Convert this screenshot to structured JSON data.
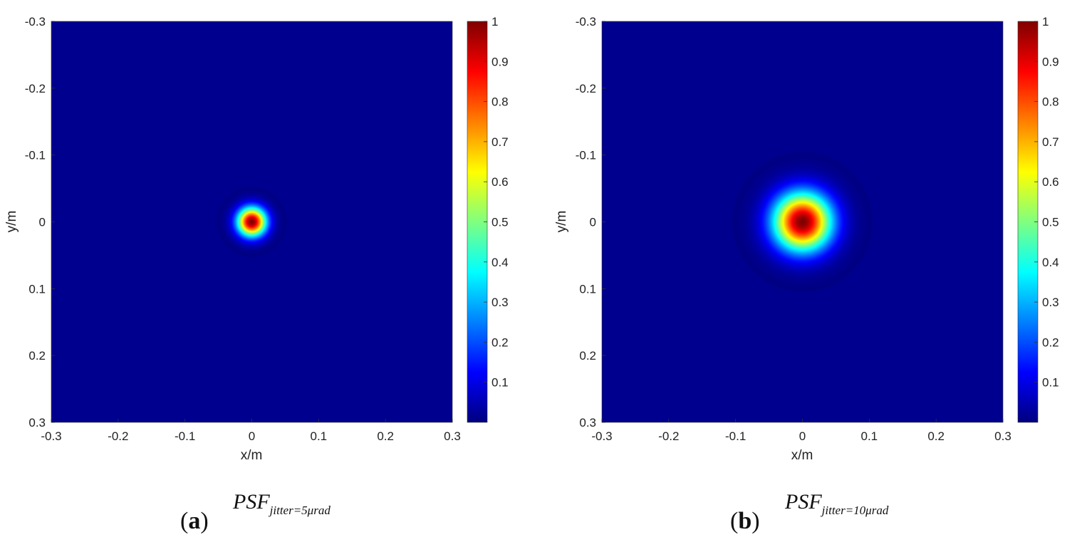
{
  "chart_data": [
    {
      "type": "heatmap",
      "panel_label": "a",
      "caption_main": "PSF",
      "caption_sub": "jitter=5μrad",
      "xlabel": "x/m",
      "ylabel": "y/m",
      "xlim": [
        -0.3,
        0.3
      ],
      "ylim": [
        -0.3,
        0.3
      ],
      "y_axis_reversed": true,
      "xticks": [
        -0.3,
        -0.2,
        -0.1,
        0,
        0.1,
        0.2,
        0.3
      ],
      "xtick_labels": [
        "-0.3",
        "-0.2",
        "-0.1",
        "0",
        "0.1",
        "0.2",
        "0.3"
      ],
      "yticks": [
        -0.3,
        -0.2,
        -0.1,
        0,
        0.1,
        0.2,
        0.3
      ],
      "ytick_labels": [
        "-0.3",
        "-0.2",
        "-0.1",
        "0",
        "0.1",
        "0.2",
        "0.3"
      ],
      "colormap": "jet",
      "clim": [
        0,
        1
      ],
      "colorbar_ticks": [
        0.1,
        0.2,
        0.3,
        0.4,
        0.5,
        0.6,
        0.7,
        0.8,
        0.9,
        1
      ],
      "colorbar_tick_labels": [
        "0.1",
        "0.2",
        "0.3",
        "0.4",
        "0.5",
        "0.6",
        "0.7",
        "0.8",
        "0.9",
        "1"
      ],
      "peak": {
        "x": 0,
        "y": 0,
        "value": 1
      },
      "gaussian_sigma": 0.015,
      "background_color": "#00008f"
    },
    {
      "type": "heatmap",
      "panel_label": "b",
      "caption_main": "PSF",
      "caption_sub": "jitter=10μrad",
      "xlabel": "x/m",
      "ylabel": "y/m",
      "xlim": [
        -0.3,
        0.3
      ],
      "ylim": [
        -0.3,
        0.3
      ],
      "y_axis_reversed": true,
      "xticks": [
        -0.3,
        -0.2,
        -0.1,
        0,
        0.1,
        0.2,
        0.3
      ],
      "xtick_labels": [
        "-0.3",
        "-0.2",
        "-0.1",
        "0",
        "0.1",
        "0.2",
        "0.3"
      ],
      "yticks": [
        -0.3,
        -0.2,
        -0.1,
        0,
        0.1,
        0.2,
        0.3
      ],
      "ytick_labels": [
        "-0.3",
        "-0.2",
        "-0.1",
        "0",
        "0.1",
        "0.2",
        "0.3"
      ],
      "colormap": "jet",
      "clim": [
        0,
        1
      ],
      "colorbar_ticks": [
        0.1,
        0.2,
        0.3,
        0.4,
        0.5,
        0.6,
        0.7,
        0.8,
        0.9,
        1
      ],
      "colorbar_tick_labels": [
        "0.1",
        "0.2",
        "0.3",
        "0.4",
        "0.5",
        "0.6",
        "0.7",
        "0.8",
        "0.9",
        "1"
      ],
      "peak": {
        "x": 0,
        "y": 0,
        "value": 1
      },
      "gaussian_sigma": 0.03,
      "background_color": "#00008f"
    }
  ]
}
